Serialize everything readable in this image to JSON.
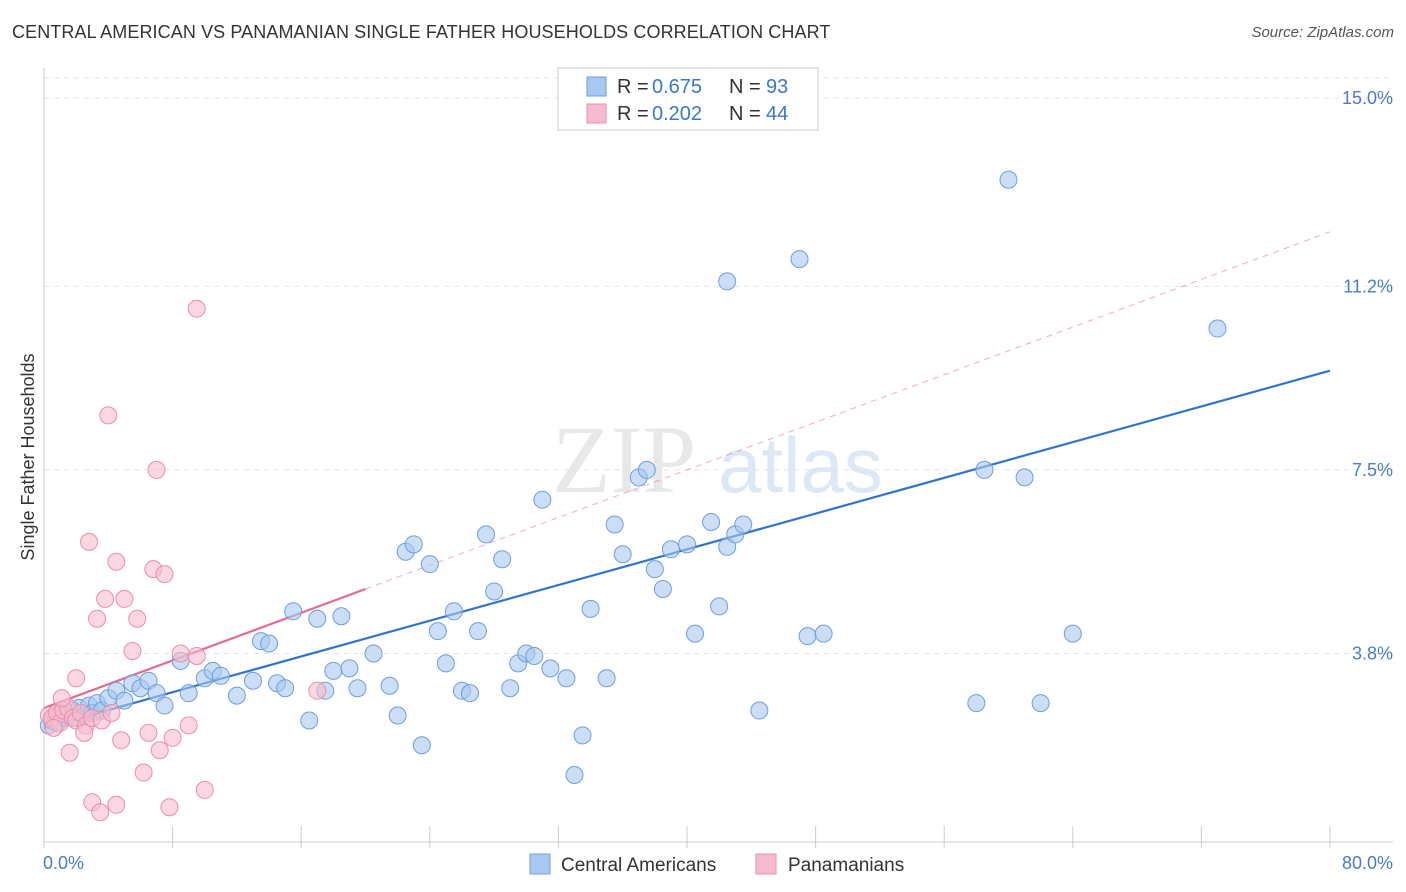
{
  "title": "CENTRAL AMERICAN VS PANAMANIAN SINGLE FATHER HOUSEHOLDS CORRELATION CHART",
  "source": "Source: ZipAtlas.com",
  "watermark": {
    "zip": "ZIP",
    "atlas": "atlas"
  },
  "chart_data": {
    "type": "scatter",
    "ylabel": "Single Father Households",
    "xlim": [
      0,
      80
    ],
    "ylim": [
      0,
      15.4
    ],
    "x_tick_labels": [
      "0.0%",
      "80.0%"
    ],
    "y_ticks": [
      {
        "value": 3.8,
        "label": "3.8%"
      },
      {
        "value": 7.5,
        "label": "7.5%"
      },
      {
        "value": 11.2,
        "label": "11.2%"
      },
      {
        "value": 15.0,
        "label": "15.0%"
      }
    ],
    "colors": {
      "blue_fill": "#a9c8ef",
      "blue_stroke": "#6d9ee0",
      "blue_line": "#2f74cf",
      "pink_fill": "#f6bccd",
      "pink_stroke": "#eb8eab",
      "pink_line": "#e46a94"
    },
    "legend": {
      "r_label": "R =",
      "n_label": "N =",
      "items": [
        {
          "r": "0.675",
          "n": "93",
          "color": "#a9c8ef"
        },
        {
          "r": "0.202",
          "n": "44",
          "color": "#f6bccd"
        }
      ]
    },
    "series": [
      {
        "name": "Central Americans",
        "color": "#a9c8ef",
        "trend": {
          "x0": 0.0,
          "y0": 2.3,
          "x1": 80.0,
          "y1": 9.5
        },
        "points": [
          [
            0.3,
            2.35
          ],
          [
            0.5,
            2.45
          ],
          [
            0.8,
            2.4
          ],
          [
            1.0,
            2.6
          ],
          [
            1.2,
            2.5
          ],
          [
            1.5,
            2.55
          ],
          [
            1.8,
            2.65
          ],
          [
            2.0,
            2.5
          ],
          [
            2.2,
            2.7
          ],
          [
            2.5,
            2.55
          ],
          [
            2.8,
            2.75
          ],
          [
            3.0,
            2.6
          ],
          [
            3.3,
            2.8
          ],
          [
            3.6,
            2.65
          ],
          [
            4.0,
            2.9
          ],
          [
            4.5,
            3.05
          ],
          [
            5.0,
            2.85
          ],
          [
            5.5,
            3.2
          ],
          [
            6.0,
            3.1
          ],
          [
            6.5,
            3.25
          ],
          [
            7.0,
            3.0
          ],
          [
            7.5,
            2.75
          ],
          [
            8.5,
            3.65
          ],
          [
            9.0,
            3.0
          ],
          [
            10.0,
            3.3
          ],
          [
            10.5,
            3.45
          ],
          [
            11.0,
            3.35
          ],
          [
            12.0,
            2.95
          ],
          [
            13.0,
            3.25
          ],
          [
            13.5,
            4.05
          ],
          [
            14.0,
            4.0
          ],
          [
            14.5,
            3.2
          ],
          [
            15.0,
            3.1
          ],
          [
            15.5,
            4.65
          ],
          [
            16.5,
            2.45
          ],
          [
            17.0,
            4.5
          ],
          [
            17.5,
            3.05
          ],
          [
            18.0,
            3.45
          ],
          [
            18.5,
            4.55
          ],
          [
            19.0,
            3.5
          ],
          [
            19.5,
            3.1
          ],
          [
            20.5,
            3.8
          ],
          [
            21.5,
            3.15
          ],
          [
            22.0,
            2.55
          ],
          [
            22.5,
            5.85
          ],
          [
            23.0,
            6.0
          ],
          [
            23.5,
            1.95
          ],
          [
            24.0,
            5.6
          ],
          [
            24.5,
            4.25
          ],
          [
            25.0,
            3.6
          ],
          [
            25.5,
            4.65
          ],
          [
            26.0,
            3.05
          ],
          [
            26.5,
            3.0
          ],
          [
            27.0,
            4.25
          ],
          [
            27.5,
            6.2
          ],
          [
            28.0,
            5.05
          ],
          [
            28.5,
            5.7
          ],
          [
            29.0,
            3.1
          ],
          [
            29.5,
            3.6
          ],
          [
            30.0,
            3.8
          ],
          [
            30.5,
            3.75
          ],
          [
            31.0,
            6.9
          ],
          [
            31.5,
            3.5
          ],
          [
            32.5,
            3.3
          ],
          [
            33.0,
            1.35
          ],
          [
            33.5,
            2.15
          ],
          [
            34.0,
            4.7
          ],
          [
            35.0,
            3.3
          ],
          [
            35.5,
            6.4
          ],
          [
            36.0,
            5.8
          ],
          [
            37.0,
            7.35
          ],
          [
            37.5,
            7.5
          ],
          [
            38.0,
            5.5
          ],
          [
            38.5,
            5.1
          ],
          [
            39.0,
            5.9
          ],
          [
            40.0,
            6.0
          ],
          [
            40.5,
            4.2
          ],
          [
            41.5,
            6.45
          ],
          [
            42.0,
            4.75
          ],
          [
            42.5,
            5.95
          ],
          [
            43.0,
            6.2
          ],
          [
            43.5,
            6.4
          ],
          [
            44.5,
            2.65
          ],
          [
            47.5,
            4.15
          ],
          [
            58.0,
            2.8
          ],
          [
            73.0,
            10.35
          ],
          [
            48.5,
            4.2
          ],
          [
            42.5,
            11.3
          ],
          [
            47.0,
            11.75
          ],
          [
            58.5,
            7.5
          ],
          [
            60.0,
            13.35
          ],
          [
            61.0,
            7.35
          ],
          [
            62.0,
            2.8
          ],
          [
            64.0,
            4.2
          ]
        ]
      },
      {
        "name": "Panamanians",
        "color": "#f6bccd",
        "trend": {
          "x0": 0.0,
          "y0": 2.7,
          "x1": 20.0,
          "y1": 5.1
        },
        "points": [
          [
            0.3,
            2.55
          ],
          [
            0.5,
            2.5
          ],
          [
            0.8,
            2.6
          ],
          [
            1.0,
            2.4
          ],
          [
            1.2,
            2.65
          ],
          [
            1.5,
            2.7
          ],
          [
            1.8,
            2.5
          ],
          [
            2.0,
            2.45
          ],
          [
            2.3,
            2.6
          ],
          [
            2.6,
            2.35
          ],
          [
            0.6,
            2.3
          ],
          [
            1.1,
            2.9
          ],
          [
            1.6,
            1.8
          ],
          [
            2.0,
            3.3
          ],
          [
            2.5,
            2.2
          ],
          [
            2.8,
            6.05
          ],
          [
            3.0,
            2.5
          ],
          [
            3.3,
            4.5
          ],
          [
            3.6,
            2.45
          ],
          [
            3.8,
            4.9
          ],
          [
            4.0,
            8.6
          ],
          [
            4.2,
            2.6
          ],
          [
            4.5,
            5.65
          ],
          [
            4.8,
            2.05
          ],
          [
            5.0,
            4.9
          ],
          [
            5.5,
            3.85
          ],
          [
            5.8,
            4.5
          ],
          [
            6.2,
            1.4
          ],
          [
            6.5,
            2.2
          ],
          [
            6.8,
            5.5
          ],
          [
            7.0,
            7.5
          ],
          [
            7.2,
            1.85
          ],
          [
            7.5,
            5.4
          ],
          [
            7.8,
            0.7
          ],
          [
            8.0,
            2.1
          ],
          [
            8.5,
            3.8
          ],
          [
            9.0,
            2.35
          ],
          [
            9.5,
            10.75
          ],
          [
            10.0,
            1.05
          ],
          [
            3.0,
            0.8
          ],
          [
            3.5,
            0.6
          ],
          [
            4.5,
            0.75
          ],
          [
            17.0,
            3.05
          ],
          [
            9.5,
            3.75
          ]
        ]
      }
    ],
    "bottom_legend": [
      "Central Americans",
      "Panamanians"
    ]
  }
}
